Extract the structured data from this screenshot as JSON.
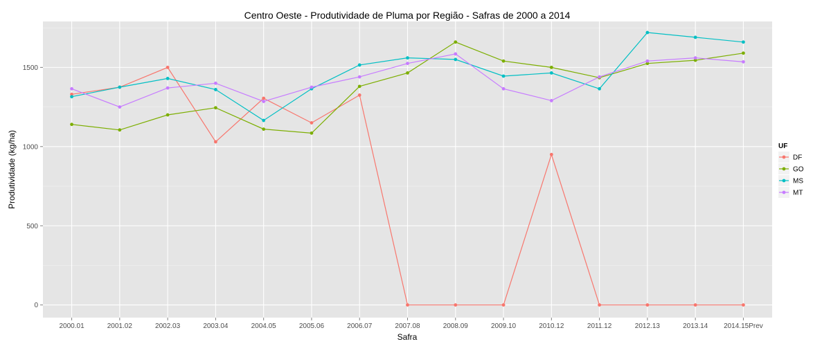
{
  "chart_data": {
    "type": "line",
    "title": "Centro Oeste  - Produtividade de Pluma por Região - Safras de 2000 a 2014",
    "xlabel": "Safra",
    "ylabel": "Produtividade (kg/ha)",
    "categories": [
      "2000.01",
      "2001.02",
      "2002.03",
      "2003.04",
      "2004.05",
      "2005.06",
      "2006.07",
      "2007.08",
      "2008.09",
      "2009.10",
      "2010.12",
      "2011.12",
      "2012.13",
      "2013.14",
      "2014.15Prev"
    ],
    "yticks": [
      0,
      500,
      1000,
      1500
    ],
    "ylim": [
      -80,
      1790
    ],
    "grid": true,
    "legend": {
      "title": "UF",
      "position": "right"
    },
    "series": [
      {
        "name": "DF",
        "color": "#F8766D",
        "values": [
          1330,
          1375,
          1500,
          1030,
          1305,
          1150,
          1325,
          0,
          0,
          0,
          950,
          0,
          0,
          0,
          0
        ]
      },
      {
        "name": "GO",
        "color": "#7CAE00",
        "values": [
          1140,
          1105,
          1200,
          1245,
          1110,
          1085,
          1380,
          1465,
          1660,
          1540,
          1500,
          1435,
          1525,
          1545,
          1590
        ]
      },
      {
        "name": "MS",
        "color": "#00BFC4",
        "values": [
          1315,
          1375,
          1430,
          1360,
          1165,
          1365,
          1515,
          1560,
          1550,
          1445,
          1465,
          1365,
          1720,
          1690,
          1660
        ]
      },
      {
        "name": "MT",
        "color": "#C77CFF",
        "values": [
          1365,
          1250,
          1370,
          1400,
          1285,
          1375,
          1440,
          1525,
          1585,
          1365,
          1290,
          1440,
          1540,
          1560,
          1535
        ]
      }
    ]
  }
}
